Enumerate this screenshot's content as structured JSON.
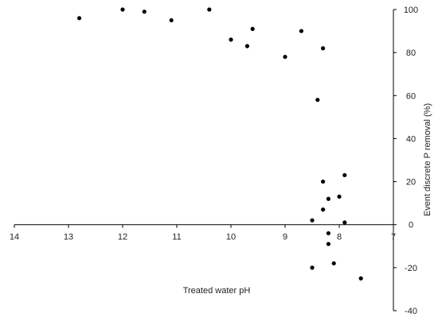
{
  "chart_data": {
    "type": "scatter",
    "title": "",
    "xlabel": "Treated water pH",
    "ylabel": "Event discrete P removal (%)",
    "x_reversed": true,
    "xlim": [
      7,
      14
    ],
    "ylim": [
      -40,
      100
    ],
    "xticks": [
      "14",
      "13",
      "12",
      "11",
      "10",
      "9",
      "8",
      "7"
    ],
    "yticks": [
      "100",
      "80",
      "60",
      "40",
      "20",
      "0",
      "-20",
      "-40"
    ],
    "grid": false,
    "legend": "none",
    "marker_color": "#000000",
    "axis_color": "#000000",
    "series": [
      {
        "points": [
          {
            "x": 12.8,
            "y": 96
          },
          {
            "x": 12.0,
            "y": 100
          },
          {
            "x": 11.6,
            "y": 99
          },
          {
            "x": 11.1,
            "y": 95
          },
          {
            "x": 10.4,
            "y": 100
          },
          {
            "x": 10.0,
            "y": 86
          },
          {
            "x": 9.7,
            "y": 83
          },
          {
            "x": 9.6,
            "y": 91
          },
          {
            "x": 9.0,
            "y": 78
          },
          {
            "x": 8.7,
            "y": 90
          },
          {
            "x": 8.4,
            "y": 58
          },
          {
            "x": 8.3,
            "y": 82
          },
          {
            "x": 8.3,
            "y": 20
          },
          {
            "x": 8.3,
            "y": 7
          },
          {
            "x": 8.2,
            "y": 12
          },
          {
            "x": 8.2,
            "y": -4
          },
          {
            "x": 8.2,
            "y": -9
          },
          {
            "x": 8.0,
            "y": 13
          },
          {
            "x": 7.9,
            "y": 23
          },
          {
            "x": 8.5,
            "y": 2
          },
          {
            "x": 7.9,
            "y": 1
          },
          {
            "x": 8.1,
            "y": -18
          },
          {
            "x": 8.5,
            "y": -20
          },
          {
            "x": 7.6,
            "y": -25
          }
        ]
      }
    ]
  }
}
